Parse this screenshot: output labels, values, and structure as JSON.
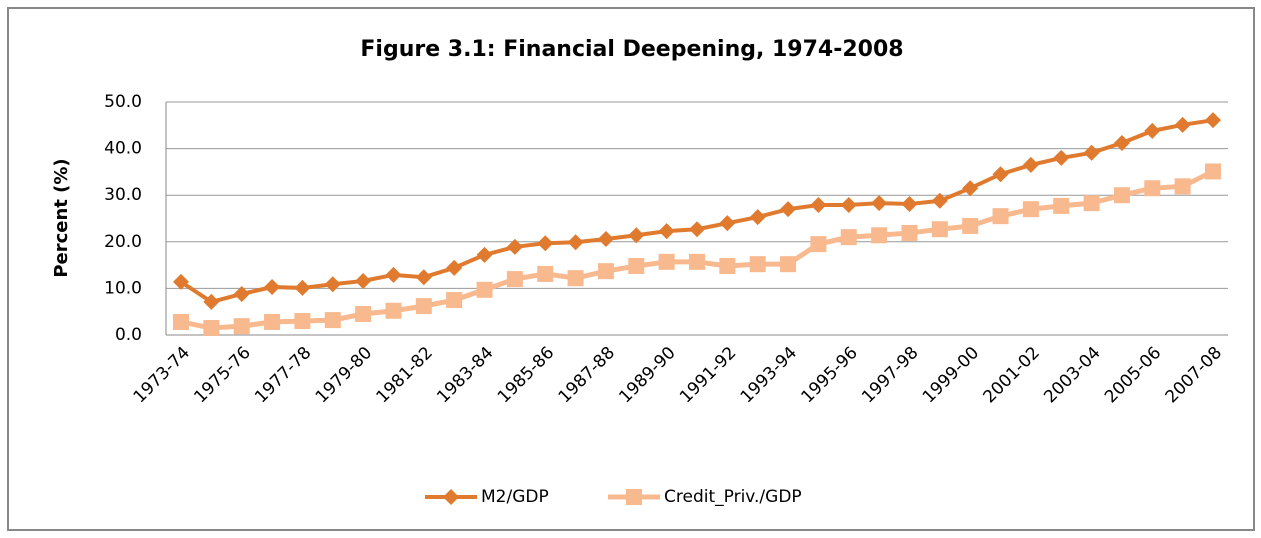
{
  "chart_data": {
    "type": "line",
    "title": "Figure 3.1: Financial Deepening, 1974-2008",
    "y_label": "Percent (%)",
    "categories": [
      "1973-74",
      null,
      "1975-76",
      null,
      "1977-78",
      null,
      "1979-80",
      null,
      "1981-82",
      null,
      "1983-84",
      null,
      "1985-86",
      null,
      "1987-88",
      null,
      "1989-90",
      null,
      "1991-92",
      null,
      "1993-94",
      null,
      "1995-96",
      null,
      "1997-98",
      null,
      "1999-00",
      null,
      "2001-02",
      null,
      "2003-04",
      null,
      "2005-06",
      null,
      "2007-08"
    ],
    "series": [
      {
        "name": "M2/GDP",
        "color": "#df7a2e",
        "marker": "diamond",
        "values": [
          11.4,
          7.1,
          8.8,
          10.3,
          10.1,
          10.9,
          11.6,
          12.9,
          12.4,
          14.4,
          17.2,
          18.9,
          19.7,
          19.9,
          20.6,
          21.4,
          22.3,
          22.7,
          24.0,
          25.3,
          27.0,
          27.9,
          27.9,
          28.3,
          28.1,
          28.8,
          31.5,
          34.5,
          36.5,
          38.0,
          39.1,
          41.2,
          43.8,
          45.1,
          46.1
        ]
      },
      {
        "name": "Credit_Priv./GDP",
        "color": "#f8b98e",
        "marker": "square",
        "values": [
          2.8,
          1.5,
          1.9,
          2.8,
          3.0,
          3.2,
          4.5,
          5.2,
          6.2,
          7.5,
          9.7,
          12.0,
          13.1,
          12.2,
          13.7,
          14.8,
          15.7,
          15.7,
          14.8,
          15.2,
          15.2,
          19.5,
          21.0,
          21.4,
          21.9,
          22.7,
          23.4,
          25.5,
          27.0,
          27.7,
          28.3,
          30.0,
          31.5,
          31.9,
          35.1
        ]
      }
    ],
    "ylim": [
      0,
      50
    ],
    "yticks": [
      {
        "value": 0,
        "label": "0.0"
      },
      {
        "value": 10,
        "label": "10.0"
      },
      {
        "value": 20,
        "label": "20.0"
      },
      {
        "value": 30,
        "label": "30.0"
      },
      {
        "value": 40,
        "label": "40.0"
      },
      {
        "value": 50,
        "label": "50.0"
      }
    ],
    "grid": true,
    "legend": "bottom"
  }
}
